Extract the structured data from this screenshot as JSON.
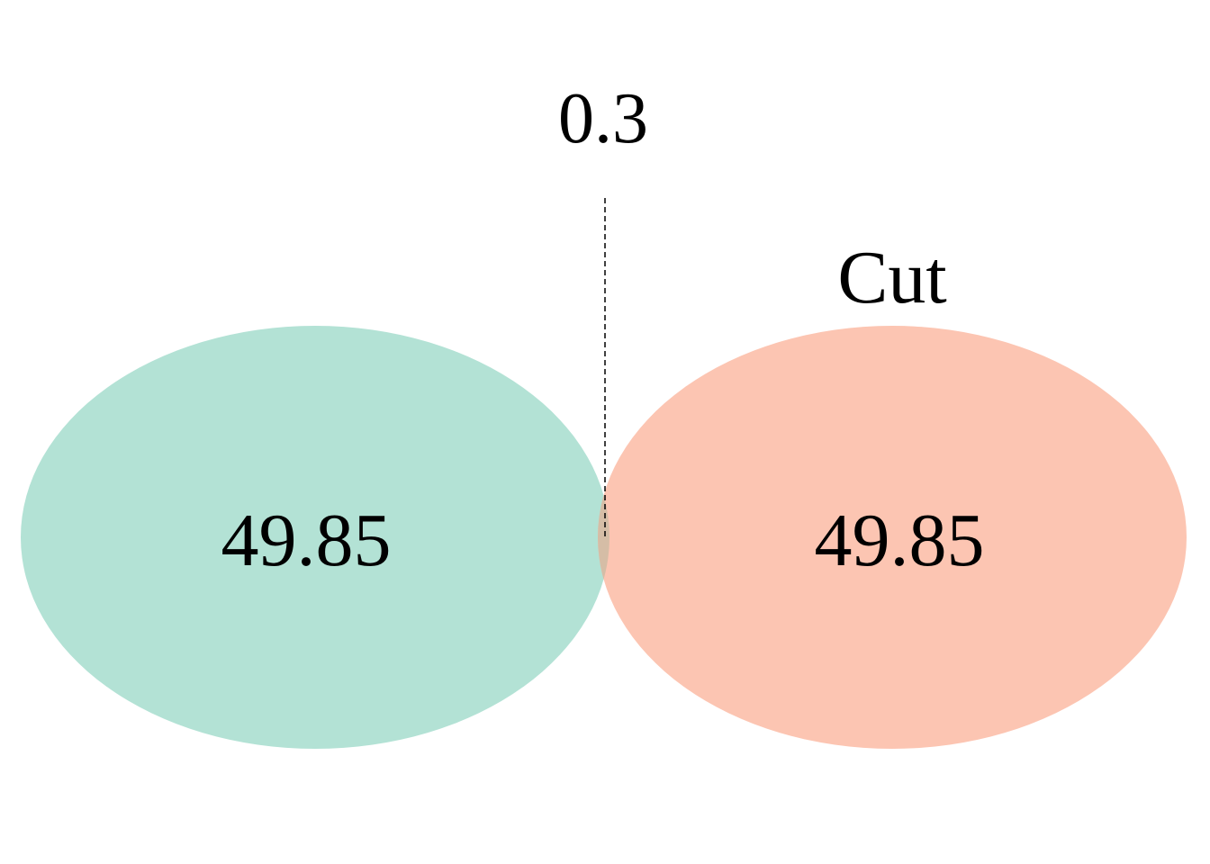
{
  "venn": {
    "left_set": {
      "name": "",
      "value": "49.85",
      "color": "#b3e2d5"
    },
    "right_set": {
      "name": "Cut",
      "value": "49.85",
      "color": "#fcc5b2"
    },
    "intersection": {
      "value": "0.3",
      "leader_line": "dashed",
      "color": "#d5bda6"
    }
  }
}
